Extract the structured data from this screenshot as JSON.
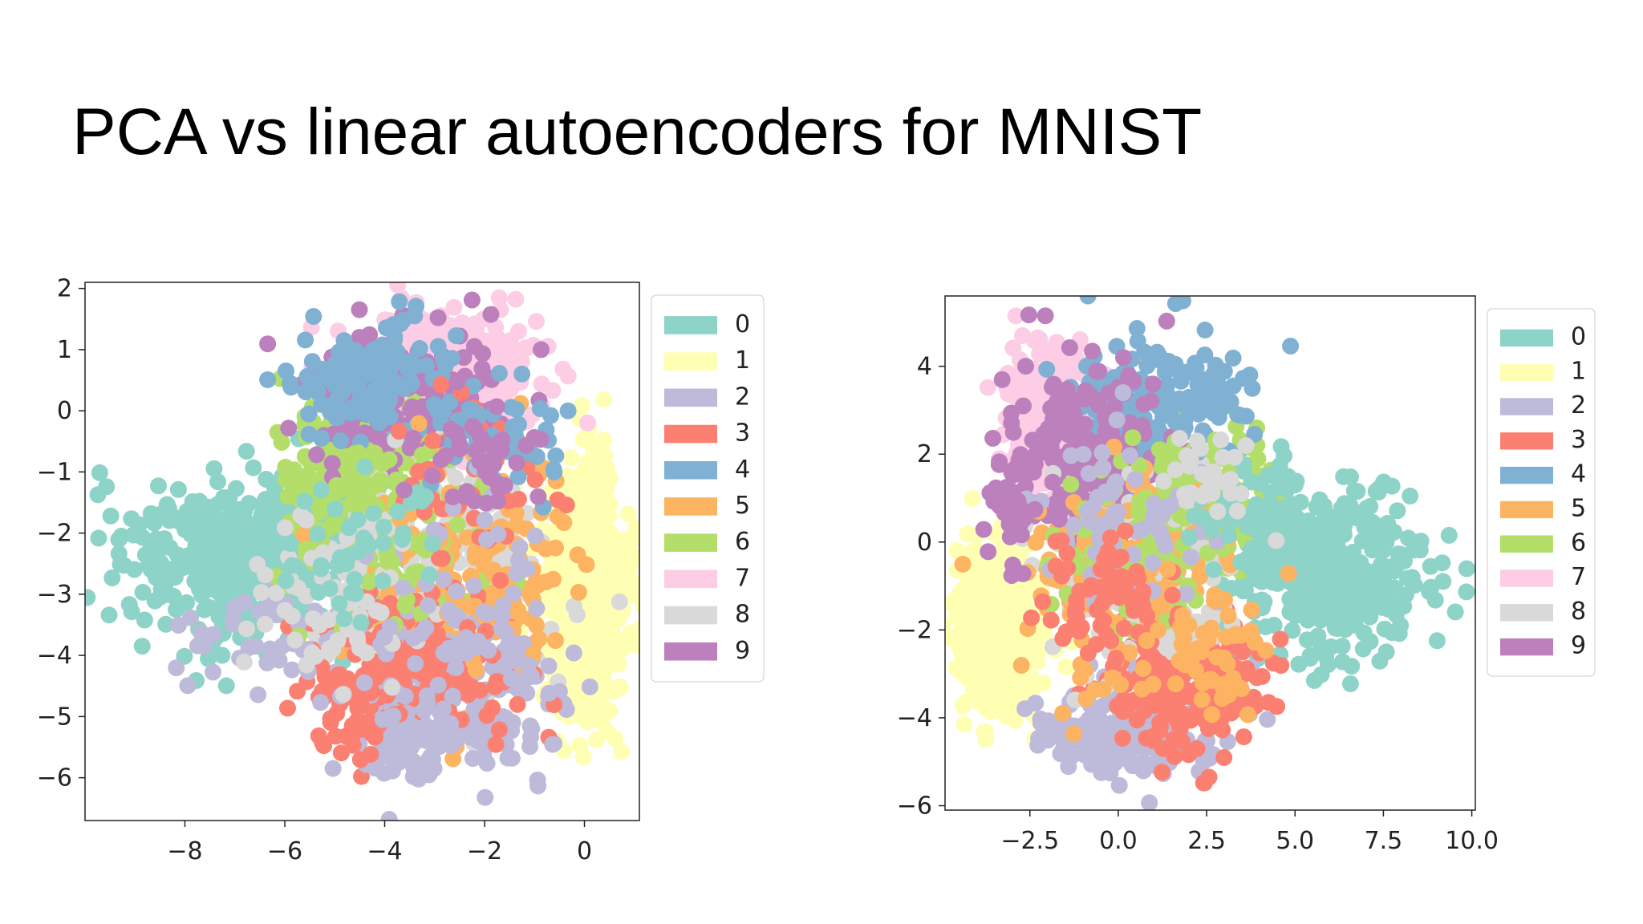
{
  "slide": {
    "title": "PCA vs linear autoencoders for MNIST"
  },
  "colors": {
    "0": "#8dd3c7",
    "1": "#ffffb3",
    "2": "#bebada",
    "3": "#fb8072",
    "4": "#80b1d3",
    "5": "#fdb462",
    "6": "#b3de69",
    "7": "#fccde5",
    "8": "#d9d9d9",
    "9": "#bc80bd"
  },
  "chart_data": [
    {
      "type": "scatter",
      "title": "",
      "xlabel": "",
      "ylabel": "",
      "xlim": [
        -10.0,
        1.1
      ],
      "ylim": [
        -6.7,
        2.1
      ],
      "xticks": [
        -8,
        -6,
        -4,
        -2,
        0
      ],
      "xtick_labels": [
        "−8",
        "−6",
        "−4",
        "−2",
        "0"
      ],
      "yticks": [
        2,
        1,
        0,
        -1,
        -2,
        -3,
        -4,
        -5,
        -6
      ],
      "ytick_labels": [
        "2",
        "1",
        "0",
        "−1",
        "−2",
        "−3",
        "−4",
        "−5",
        "−6"
      ],
      "legend": {
        "position": "outside-right",
        "labels": [
          "0",
          "1",
          "2",
          "3",
          "4",
          "5",
          "6",
          "7",
          "8",
          "9"
        ]
      },
      "clusters": [
        {
          "label": "1",
          "cx": 0.0,
          "cy": -3.0,
          "sx": 0.45,
          "sy": 1.05,
          "n": 650
        },
        {
          "label": "0",
          "cx": -6.8,
          "cy": -2.4,
          "sx": 1.3,
          "sy": 0.75,
          "n": 420
        },
        {
          "label": "7",
          "cx": -2.7,
          "cy": 0.6,
          "sx": 0.95,
          "sy": 0.55,
          "n": 320
        },
        {
          "label": "6",
          "cx": -4.6,
          "cy": -1.0,
          "sx": 0.75,
          "sy": 0.75,
          "n": 200
        },
        {
          "label": "9",
          "cx": -3.6,
          "cy": 0.2,
          "sx": 1.0,
          "sy": 0.55,
          "n": 180
        },
        {
          "label": "4",
          "cx": -4.3,
          "cy": 0.5,
          "sx": 0.8,
          "sy": 0.5,
          "n": 140
        },
        {
          "label": "8",
          "cx": -3.0,
          "cy": -2.7,
          "sx": 1.2,
          "sy": 0.9,
          "n": 170
        },
        {
          "label": "5",
          "cx": -2.8,
          "cy": -3.0,
          "sx": 1.1,
          "sy": 0.9,
          "n": 130
        },
        {
          "label": "2",
          "cx": -2.5,
          "cy": -4.8,
          "sx": 1.1,
          "sy": 0.55,
          "n": 170
        },
        {
          "label": "3",
          "cx": -3.4,
          "cy": -4.1,
          "sx": 1.0,
          "sy": 0.55,
          "n": 180
        },
        {
          "label": "2",
          "cx": -3.5,
          "cy": -5.4,
          "sx": 0.55,
          "sy": 0.45,
          "n": 60
        },
        {
          "label": "3",
          "cx": -4.6,
          "cy": -4.9,
          "sx": 0.45,
          "sy": 0.35,
          "n": 50
        },
        {
          "label": "2",
          "cx": -5.8,
          "cy": -3.6,
          "sx": 1.3,
          "sy": 0.6,
          "n": 60
        },
        {
          "label": "6",
          "cx": -3.8,
          "cy": -2.1,
          "sx": 1.1,
          "sy": 0.8,
          "n": 80
        },
        {
          "label": "8",
          "cx": -5.0,
          "cy": -3.2,
          "sx": 0.9,
          "sy": 0.6,
          "n": 60
        },
        {
          "label": "5",
          "cx": -1.6,
          "cy": -2.2,
          "sx": 0.7,
          "sy": 0.9,
          "n": 60
        },
        {
          "label": "3",
          "cx": -2.2,
          "cy": -1.4,
          "sx": 0.8,
          "sy": 0.8,
          "n": 50
        },
        {
          "label": "4",
          "cx": -1.6,
          "cy": -0.5,
          "sx": 0.6,
          "sy": 0.5,
          "n": 40
        },
        {
          "label": "2",
          "cx": -2.5,
          "cy": -3.3,
          "sx": 1.0,
          "sy": 1.0,
          "n": 60
        },
        {
          "label": "0",
          "cx": -4.4,
          "cy": -2.2,
          "sx": 0.8,
          "sy": 0.7,
          "n": 40
        },
        {
          "label": "9",
          "cx": -2.0,
          "cy": -0.9,
          "sx": 0.6,
          "sy": 0.5,
          "n": 40
        }
      ]
    },
    {
      "type": "scatter",
      "title": "",
      "xlabel": "",
      "ylabel": "",
      "xlim": [
        -4.9,
        10.1
      ],
      "ylim": [
        -6.1,
        5.6
      ],
      "xticks": [
        -2.5,
        0.0,
        2.5,
        5.0,
        7.5,
        10.0
      ],
      "xtick_labels": [
        "−2.5",
        "0.0",
        "2.5",
        "5.0",
        "7.5",
        "10.0"
      ],
      "yticks": [
        4,
        2,
        0,
        -2,
        -4,
        -6
      ],
      "ytick_labels": [
        "4",
        "2",
        "0",
        "−2",
        "−4",
        "−6"
      ],
      "legend": {
        "position": "outside-right",
        "labels": [
          "0",
          "1",
          "2",
          "3",
          "4",
          "5",
          "6",
          "7",
          "8",
          "9"
        ]
      },
      "clusters": [
        {
          "label": "1",
          "cx": -3.4,
          "cy": -2.0,
          "sx": 0.55,
          "sy": 1.0,
          "n": 520
        },
        {
          "label": "0",
          "cx": 5.8,
          "cy": -0.7,
          "sx": 1.5,
          "sy": 0.95,
          "n": 380
        },
        {
          "label": "7",
          "cx": -1.8,
          "cy": 2.8,
          "sx": 0.75,
          "sy": 0.95,
          "n": 260
        },
        {
          "label": "4",
          "cx": 0.5,
          "cy": 3.0,
          "sx": 1.0,
          "sy": 0.9,
          "n": 170
        },
        {
          "label": "9",
          "cx": -0.9,
          "cy": 2.0,
          "sx": 1.1,
          "sy": 1.0,
          "n": 170
        },
        {
          "label": "6",
          "cx": 2.3,
          "cy": 1.2,
          "sx": 1.0,
          "sy": 0.75,
          "n": 170
        },
        {
          "label": "2",
          "cx": 0.3,
          "cy": -4.3,
          "sx": 1.3,
          "sy": 0.55,
          "n": 200
        },
        {
          "label": "3",
          "cx": 2.0,
          "cy": -3.3,
          "sx": 1.1,
          "sy": 0.75,
          "n": 200
        },
        {
          "label": "8",
          "cx": 0.8,
          "cy": -0.8,
          "sx": 1.3,
          "sy": 1.1,
          "n": 180
        },
        {
          "label": "5",
          "cx": 0.4,
          "cy": -0.6,
          "sx": 1.5,
          "sy": 1.3,
          "n": 150
        },
        {
          "label": "6",
          "cx": 0.5,
          "cy": -0.2,
          "sx": 1.2,
          "sy": 0.9,
          "n": 80
        },
        {
          "label": "2",
          "cx": 0.0,
          "cy": 0.3,
          "sx": 1.2,
          "sy": 1.0,
          "n": 60
        },
        {
          "label": "3",
          "cx": -0.6,
          "cy": -1.4,
          "sx": 1.0,
          "sy": 0.8,
          "n": 70
        },
        {
          "label": "4",
          "cx": 2.6,
          "cy": 3.3,
          "sx": 0.7,
          "sy": 0.6,
          "n": 40
        },
        {
          "label": "9",
          "cx": -2.9,
          "cy": 0.9,
          "sx": 0.5,
          "sy": 0.7,
          "n": 50
        },
        {
          "label": "0",
          "cx": 3.8,
          "cy": 0.6,
          "sx": 0.8,
          "sy": 0.6,
          "n": 60
        },
        {
          "label": "5",
          "cx": 2.6,
          "cy": -2.5,
          "sx": 1.0,
          "sy": 0.8,
          "n": 50
        },
        {
          "label": "8",
          "cx": 2.7,
          "cy": 1.5,
          "sx": 0.6,
          "sy": 0.5,
          "n": 30
        }
      ]
    }
  ]
}
